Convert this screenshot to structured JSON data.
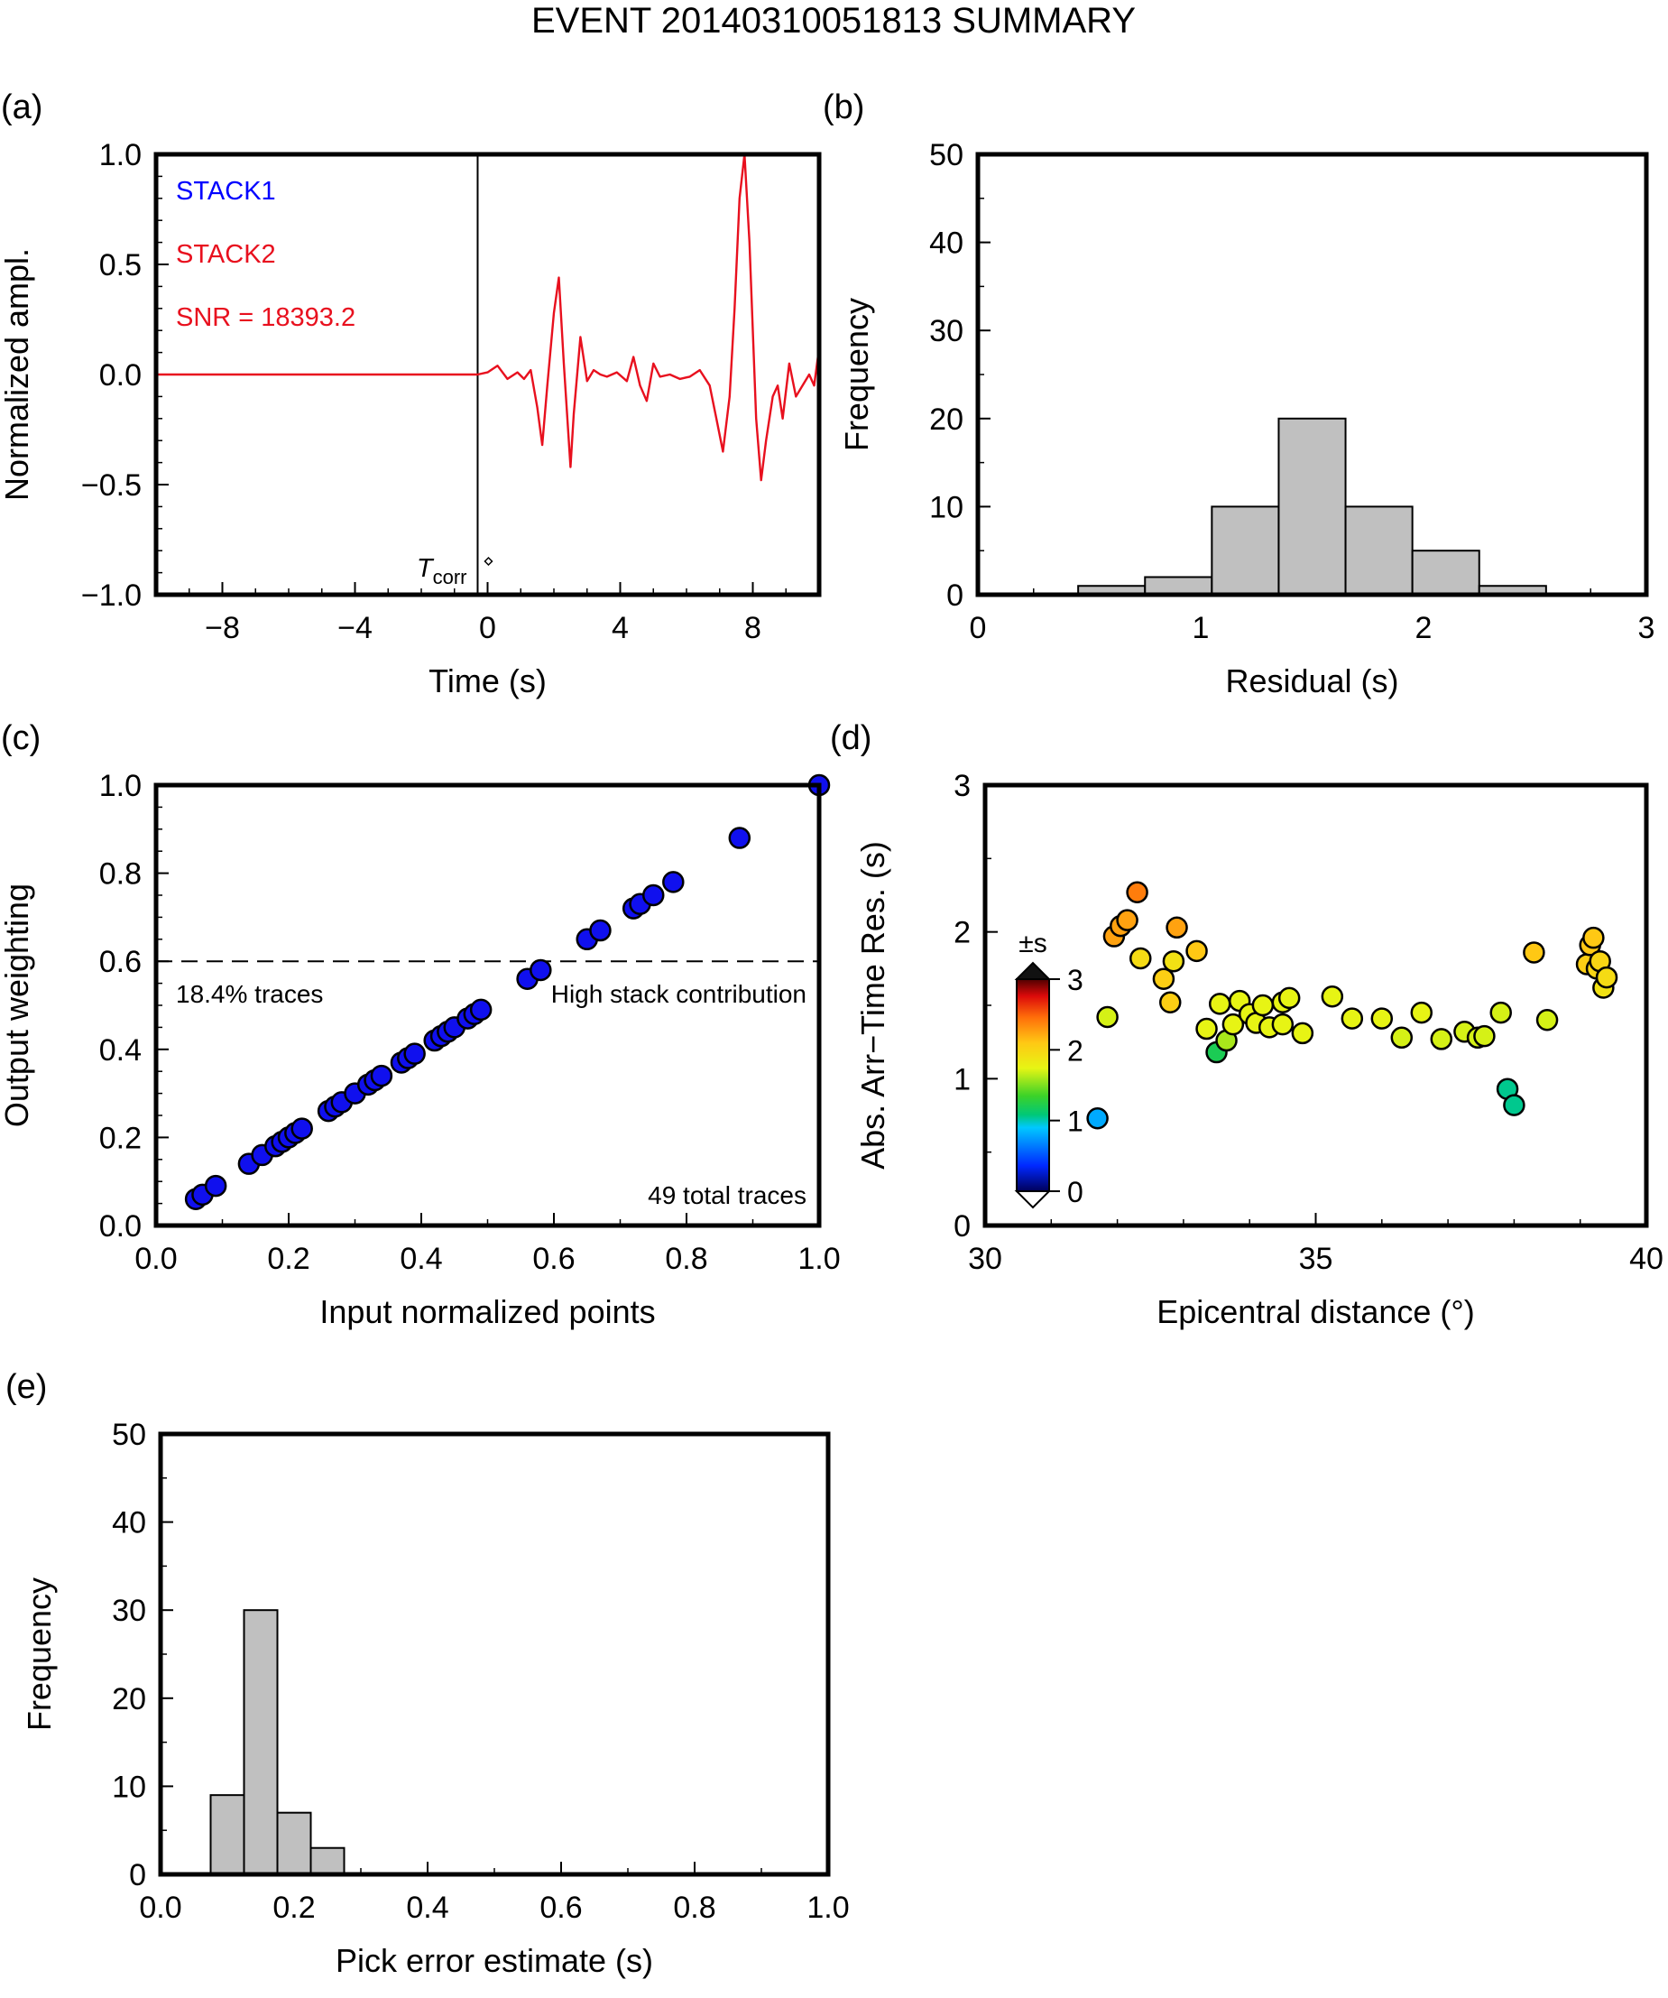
{
  "title": "EVENT 20140310051813 SUMMARY",
  "colors": {
    "stack1": "#0000ff",
    "stack2": "#e8101e",
    "hist_fill": "#c0c0c0",
    "point_blue": "#1010ee"
  },
  "chart_data": [
    {
      "id": "a",
      "panel_label": "(a)",
      "type": "line",
      "xlabel": "Time (s)",
      "ylabel": "Normalized ampl.",
      "xlim": [
        -10,
        10
      ],
      "ylim": [
        -1,
        1
      ],
      "xticks": [
        -8,
        -4,
        0,
        4,
        8
      ],
      "xtick_labels": [
        "−8",
        "−4",
        "0",
        "4",
        "8"
      ],
      "yticks": [
        -1,
        -0.5,
        0,
        0.5,
        1
      ],
      "ytick_labels": [
        "−1.0",
        "−0.5",
        "0.0",
        "0.5",
        "1.0"
      ],
      "legend": [
        "STACK1",
        "STACK2"
      ],
      "snr_label": "SNR = 18393.2",
      "marker_label": "T",
      "marker_sub": "corr",
      "marker_x": -0.3,
      "series": [
        {
          "name": "STACK2",
          "x": [
            -10,
            -0.3,
            0,
            0.3,
            0.6,
            0.9,
            1.1,
            1.3,
            1.5,
            1.65,
            1.8,
            2.0,
            2.15,
            2.3,
            2.5,
            2.6,
            2.8,
            3.0,
            3.2,
            3.4,
            3.6,
            3.9,
            4.2,
            4.4,
            4.6,
            4.8,
            5.0,
            5.2,
            5.5,
            5.8,
            6.1,
            6.4,
            6.7,
            6.9,
            7.1,
            7.3,
            7.45,
            7.6,
            7.75,
            7.9,
            8.1,
            8.25,
            8.4,
            8.6,
            8.75,
            8.9,
            9.1,
            9.3,
            9.5,
            9.7,
            9.85,
            10.0
          ],
          "y": [
            0,
            0,
            0.01,
            0.04,
            -0.02,
            0.01,
            -0.02,
            0.02,
            -0.15,
            -0.32,
            -0.05,
            0.28,
            0.44,
            0.05,
            -0.42,
            -0.18,
            0.17,
            -0.03,
            0.02,
            0,
            -0.01,
            0.01,
            -0.03,
            0.08,
            -0.05,
            -0.12,
            0.05,
            -0.01,
            0.0,
            -0.02,
            -0.01,
            0.02,
            -0.05,
            -0.2,
            -0.35,
            -0.1,
            0.3,
            0.8,
            1.0,
            0.6,
            -0.2,
            -0.48,
            -0.3,
            -0.1,
            -0.05,
            -0.2,
            0.05,
            -0.1,
            -0.05,
            0.0,
            -0.05,
            0.12
          ]
        }
      ]
    },
    {
      "id": "b",
      "panel_label": "(b)",
      "type": "bar",
      "xlabel": "Residual (s)",
      "ylabel": "Frequency",
      "xlim": [
        0,
        3
      ],
      "ylim": [
        0,
        50
      ],
      "xticks": [
        0,
        1,
        2,
        3
      ],
      "xtick_labels": [
        "0",
        "1",
        "2",
        "3"
      ],
      "yticks": [
        0,
        10,
        20,
        30,
        40,
        50
      ],
      "ytick_labels": [
        "0",
        "10",
        "20",
        "30",
        "40",
        "50"
      ],
      "bins": [
        {
          "x0": 0.45,
          "x1": 0.75,
          "value": 1
        },
        {
          "x0": 0.75,
          "x1": 1.05,
          "value": 2
        },
        {
          "x0": 1.05,
          "x1": 1.35,
          "value": 10
        },
        {
          "x0": 1.35,
          "x1": 1.65,
          "value": 20
        },
        {
          "x0": 1.65,
          "x1": 1.95,
          "value": 10
        },
        {
          "x0": 1.95,
          "x1": 2.25,
          "value": 5
        },
        {
          "x0": 2.25,
          "x1": 2.55,
          "value": 1
        }
      ]
    },
    {
      "id": "c",
      "panel_label": "(c)",
      "type": "scatter",
      "xlabel": "Input normalized points",
      "ylabel": "Output weighting",
      "xlim": [
        0,
        1
      ],
      "ylim": [
        0,
        1
      ],
      "xticks": [
        0,
        0.2,
        0.4,
        0.6,
        0.8,
        1.0
      ],
      "xtick_labels": [
        "0.0",
        "0.2",
        "0.4",
        "0.6",
        "0.8",
        "1.0"
      ],
      "yticks": [
        0,
        0.2,
        0.4,
        0.6,
        0.8,
        1.0
      ],
      "ytick_labels": [
        "0.0",
        "0.2",
        "0.4",
        "0.6",
        "0.8",
        "1.0"
      ],
      "threshold": 0.6,
      "annotations": {
        "left": "18.4% traces",
        "right": "High stack contribution",
        "total": "49 total traces"
      },
      "x": [
        0.06,
        0.07,
        0.09,
        0.14,
        0.16,
        0.18,
        0.19,
        0.2,
        0.21,
        0.22,
        0.26,
        0.27,
        0.28,
        0.3,
        0.32,
        0.33,
        0.34,
        0.37,
        0.38,
        0.39,
        0.42,
        0.43,
        0.44,
        0.45,
        0.47,
        0.48,
        0.49,
        0.56,
        0.58,
        0.65,
        0.67,
        0.72,
        0.73,
        0.75,
        0.78,
        0.88,
        1.0
      ],
      "y": [
        0.06,
        0.07,
        0.09,
        0.14,
        0.16,
        0.18,
        0.19,
        0.2,
        0.21,
        0.22,
        0.26,
        0.27,
        0.28,
        0.3,
        0.32,
        0.33,
        0.34,
        0.37,
        0.38,
        0.39,
        0.42,
        0.43,
        0.44,
        0.45,
        0.47,
        0.48,
        0.49,
        0.56,
        0.58,
        0.65,
        0.67,
        0.72,
        0.73,
        0.75,
        0.78,
        0.88,
        1.0
      ]
    },
    {
      "id": "d",
      "panel_label": "(d)",
      "type": "scatter",
      "xlabel": "Epicentral distance (°)",
      "ylabel": "Abs. Arr−Time Res. (s)",
      "xlim": [
        30,
        40
      ],
      "ylim": [
        0,
        3
      ],
      "xticks": [
        30,
        35,
        40
      ],
      "xtick_labels": [
        "30",
        "35",
        "40"
      ],
      "yticks": [
        0,
        1,
        2,
        3
      ],
      "ytick_labels": [
        "0",
        "1",
        "2",
        "3"
      ],
      "colorbar": {
        "label": "±s",
        "range": [
          0,
          3
        ],
        "ticks": [
          0,
          1,
          2,
          3
        ],
        "tick_labels": [
          "0",
          "1",
          "2",
          "3"
        ]
      },
      "x": [
        31.7,
        31.85,
        31.95,
        32.05,
        32.15,
        32.3,
        32.35,
        32.7,
        32.8,
        32.85,
        32.9,
        33.2,
        33.35,
        33.5,
        33.55,
        33.65,
        33.75,
        33.85,
        34.0,
        34.1,
        34.2,
        34.3,
        34.5,
        34.5,
        34.6,
        34.8,
        35.25,
        35.55,
        36.0,
        36.3,
        36.6,
        36.9,
        37.25,
        37.45,
        37.55,
        37.8,
        37.9,
        38.0,
        38.3,
        38.5,
        39.1,
        39.15,
        39.2,
        39.25,
        39.3,
        39.35,
        39.4
      ],
      "y": [
        0.73,
        1.42,
        1.97,
        2.04,
        2.08,
        2.27,
        1.82,
        1.68,
        1.52,
        1.8,
        2.03,
        1.87,
        1.34,
        1.18,
        1.51,
        1.26,
        1.37,
        1.53,
        1.44,
        1.38,
        1.5,
        1.35,
        1.52,
        1.37,
        1.55,
        1.31,
        1.56,
        1.41,
        1.41,
        1.28,
        1.45,
        1.27,
        1.32,
        1.28,
        1.29,
        1.45,
        0.93,
        0.82,
        1.86,
        1.4,
        1.78,
        1.91,
        1.96,
        1.75,
        1.8,
        1.62,
        1.69
      ],
      "c": [
        0.8,
        1.7,
        2.25,
        2.25,
        2.25,
        2.4,
        1.95,
        2.05,
        2.05,
        1.9,
        2.25,
        2.1,
        1.75,
        1.2,
        1.75,
        1.6,
        1.75,
        1.75,
        1.75,
        1.75,
        1.75,
        1.75,
        1.75,
        1.75,
        1.75,
        1.75,
        1.75,
        1.75,
        1.75,
        1.7,
        1.75,
        1.7,
        1.7,
        1.7,
        1.7,
        1.7,
        1.05,
        1.05,
        2.1,
        1.7,
        2.05,
        2.1,
        2.1,
        2.0,
        2.0,
        1.9,
        1.95
      ]
    },
    {
      "id": "e",
      "panel_label": "(e)",
      "type": "bar",
      "xlabel": "Pick error estimate (s)",
      "ylabel": "Frequency",
      "xlim": [
        0,
        1
      ],
      "ylim": [
        0,
        50
      ],
      "xticks": [
        0,
        0.2,
        0.4,
        0.6,
        0.8,
        1.0
      ],
      "xtick_labels": [
        "0.0",
        "0.2",
        "0.4",
        "0.6",
        "0.8",
        "1.0"
      ],
      "yticks": [
        0,
        10,
        20,
        30,
        40,
        50
      ],
      "ytick_labels": [
        "0",
        "10",
        "20",
        "30",
        "40",
        "50"
      ],
      "bins": [
        {
          "x0": 0.075,
          "x1": 0.125,
          "value": 9
        },
        {
          "x0": 0.125,
          "x1": 0.175,
          "value": 30
        },
        {
          "x0": 0.175,
          "x1": 0.225,
          "value": 7
        },
        {
          "x0": 0.225,
          "x1": 0.275,
          "value": 3
        }
      ]
    }
  ]
}
